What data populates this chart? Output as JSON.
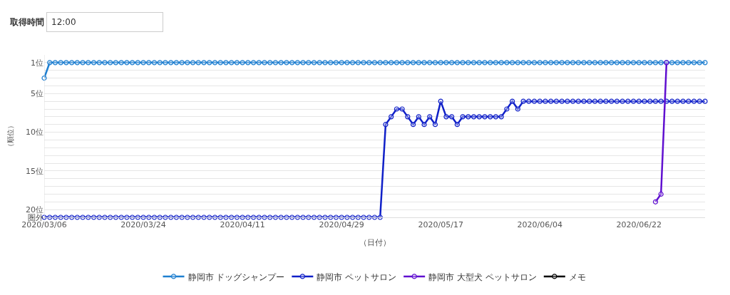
{
  "chart_data": {
    "type": "line",
    "annotations": [
      "取得時間",
      "12:00"
    ],
    "xlabel": "（日付）",
    "ylabel": "（順位）",
    "x": [
      "2020-03-06",
      "2020-03-07",
      "2020-03-08",
      "2020-03-09",
      "2020-03-10",
      "2020-03-11",
      "2020-03-12",
      "2020-03-13",
      "2020-03-14",
      "2020-03-15",
      "2020-03-16",
      "2020-03-17",
      "2020-03-18",
      "2020-03-19",
      "2020-03-20",
      "2020-03-21",
      "2020-03-22",
      "2020-03-23",
      "2020-03-24",
      "2020-03-25",
      "2020-03-26",
      "2020-03-27",
      "2020-03-28",
      "2020-03-29",
      "2020-03-30",
      "2020-03-31",
      "2020-04-01",
      "2020-04-02",
      "2020-04-03",
      "2020-04-04",
      "2020-04-05",
      "2020-04-06",
      "2020-04-07",
      "2020-04-08",
      "2020-04-09",
      "2020-04-10",
      "2020-04-11",
      "2020-04-12",
      "2020-04-13",
      "2020-04-14",
      "2020-04-15",
      "2020-04-16",
      "2020-04-17",
      "2020-04-18",
      "2020-04-19",
      "2020-04-20",
      "2020-04-21",
      "2020-04-22",
      "2020-04-23",
      "2020-04-24",
      "2020-04-25",
      "2020-04-26",
      "2020-04-27",
      "2020-04-28",
      "2020-04-29",
      "2020-04-30",
      "2020-05-01",
      "2020-05-02",
      "2020-05-03",
      "2020-05-04",
      "2020-05-05",
      "2020-05-06",
      "2020-05-07",
      "2020-05-08",
      "2020-05-09",
      "2020-05-10",
      "2020-05-11",
      "2020-05-12",
      "2020-05-13",
      "2020-05-14",
      "2020-05-15",
      "2020-05-16",
      "2020-05-17",
      "2020-05-18",
      "2020-05-19",
      "2020-05-20",
      "2020-05-21",
      "2020-05-22",
      "2020-05-23",
      "2020-05-24",
      "2020-05-25",
      "2020-05-26",
      "2020-05-27",
      "2020-05-28",
      "2020-05-29",
      "2020-05-30",
      "2020-05-31",
      "2020-06-01",
      "2020-06-02",
      "2020-06-03",
      "2020-06-04",
      "2020-06-05",
      "2020-06-06",
      "2020-06-07",
      "2020-06-08",
      "2020-06-09",
      "2020-06-10",
      "2020-06-11",
      "2020-06-12",
      "2020-06-13",
      "2020-06-14",
      "2020-06-15",
      "2020-06-16",
      "2020-06-17",
      "2020-06-18",
      "2020-06-19",
      "2020-06-20",
      "2020-06-21",
      "2020-06-22",
      "2020-06-23",
      "2020-06-24",
      "2020-06-25",
      "2020-06-26",
      "2020-06-27",
      "2020-06-28",
      "2020-06-29",
      "2020-06-30",
      "2020-07-01",
      "2020-07-02",
      "2020-07-03",
      "2020-07-04"
    ],
    "series": [
      {
        "name": "静岡市 ドッグシャンプー",
        "color": "#1f7fd0",
        "values": [
          3,
          1,
          1,
          1,
          1,
          1,
          1,
          1,
          1,
          1,
          1,
          1,
          1,
          1,
          1,
          1,
          1,
          1,
          1,
          1,
          1,
          1,
          1,
          1,
          1,
          1,
          1,
          1,
          1,
          1,
          1,
          1,
          1,
          1,
          1,
          1,
          1,
          1,
          1,
          1,
          1,
          1,
          1,
          1,
          1,
          1,
          1,
          1,
          1,
          1,
          1,
          1,
          1,
          1,
          1,
          1,
          1,
          1,
          1,
          1,
          1,
          1,
          1,
          1,
          1,
          1,
          1,
          1,
          1,
          1,
          1,
          1,
          1,
          1,
          1,
          1,
          1,
          1,
          1,
          1,
          1,
          1,
          1,
          1,
          1,
          1,
          1,
          1,
          1,
          1,
          1,
          1,
          1,
          1,
          1,
          1,
          1,
          1,
          1,
          1,
          1,
          1,
          1,
          1,
          1,
          1,
          1,
          1,
          1,
          1,
          1,
          1,
          1,
          1,
          1,
          1,
          1,
          1,
          1,
          1,
          1
        ]
      },
      {
        "name": "静岡市 ペットサロン",
        "color": "#1020c8",
        "values": [
          21,
          21,
          21,
          21,
          21,
          21,
          21,
          21,
          21,
          21,
          21,
          21,
          21,
          21,
          21,
          21,
          21,
          21,
          21,
          21,
          21,
          21,
          21,
          21,
          21,
          21,
          21,
          21,
          21,
          21,
          21,
          21,
          21,
          21,
          21,
          21,
          21,
          21,
          21,
          21,
          21,
          21,
          21,
          21,
          21,
          21,
          21,
          21,
          21,
          21,
          21,
          21,
          21,
          21,
          21,
          21,
          21,
          21,
          21,
          21,
          21,
          21,
          9,
          8,
          7,
          7,
          8,
          9,
          8,
          9,
          8,
          9,
          6,
          8,
          8,
          9,
          8,
          8,
          8,
          8,
          8,
          8,
          8,
          8,
          7,
          6,
          7,
          6,
          6,
          6,
          6,
          6,
          6,
          6,
          6,
          6,
          6,
          6,
          6,
          6,
          6,
          6,
          6,
          6,
          6,
          6,
          6,
          6,
          6,
          6,
          6,
          6,
          6,
          6,
          6,
          6,
          6,
          6,
          6,
          6,
          6
        ]
      },
      {
        "name": "静岡市 大型犬 ペットサロン",
        "color": "#6010d0",
        "values": [
          null,
          null,
          null,
          null,
          null,
          null,
          null,
          null,
          null,
          null,
          null,
          null,
          null,
          null,
          null,
          null,
          null,
          null,
          null,
          null,
          null,
          null,
          null,
          null,
          null,
          null,
          null,
          null,
          null,
          null,
          null,
          null,
          null,
          null,
          null,
          null,
          null,
          null,
          null,
          null,
          null,
          null,
          null,
          null,
          null,
          null,
          null,
          null,
          null,
          null,
          null,
          null,
          null,
          null,
          null,
          null,
          null,
          null,
          null,
          null,
          null,
          null,
          null,
          null,
          null,
          null,
          null,
          null,
          null,
          null,
          null,
          null,
          null,
          null,
          null,
          null,
          null,
          null,
          null,
          null,
          null,
          null,
          null,
          null,
          null,
          null,
          null,
          null,
          null,
          null,
          null,
          null,
          null,
          null,
          null,
          null,
          null,
          null,
          null,
          null,
          null,
          null,
          null,
          null,
          null,
          null,
          null,
          null,
          null,
          null,
          null,
          19,
          18,
          1,
          null,
          null,
          null,
          null,
          null,
          null,
          null
        ]
      },
      {
        "name": "メモ",
        "color": "#000000",
        "values": [
          null,
          null,
          null,
          null,
          null,
          null,
          null,
          null,
          null,
          null,
          null,
          null,
          null,
          null,
          null,
          null,
          null,
          null,
          null,
          null,
          null,
          null,
          null,
          null,
          null,
          null,
          null,
          null,
          null,
          null,
          null,
          null,
          null,
          null,
          null,
          null,
          null,
          null,
          null,
          null,
          null,
          null,
          null,
          null,
          null,
          null,
          null,
          null,
          null,
          null,
          null,
          null,
          null,
          null,
          null,
          null,
          null,
          null,
          null,
          null,
          null,
          null,
          null,
          null,
          null,
          null,
          null,
          null,
          null,
          null,
          null,
          null,
          null,
          null,
          null,
          null,
          null,
          null,
          null,
          null,
          null,
          null,
          null,
          null,
          null,
          null,
          null,
          null,
          null,
          null,
          null,
          null,
          null,
          null,
          null,
          null,
          null,
          null,
          null,
          null,
          null,
          null,
          null,
          null,
          null,
          null,
          null,
          null,
          null,
          null,
          null,
          null,
          null,
          null,
          null,
          null,
          null,
          null,
          null,
          null,
          null
        ]
      }
    ],
    "xlim": [
      "2020-03-06",
      "2020-07-04"
    ],
    "xticks": [
      {
        "value": "2020-03-06",
        "label": "2020/03/06"
      },
      {
        "value": "2020-03-24",
        "label": "2020/03/24"
      },
      {
        "value": "2020-04-11",
        "label": "2020/04/11"
      },
      {
        "value": "2020-04-29",
        "label": "2020/04/29"
      },
      {
        "value": "2020-05-17",
        "label": "2020/05/17"
      },
      {
        "value": "2020-06-04",
        "label": "2020/06/04"
      },
      {
        "value": "2020-06-22",
        "label": "2020/06/22"
      }
    ],
    "ylim": [
      21,
      0
    ],
    "yticks": [
      {
        "value": 1,
        "label": "1位"
      },
      {
        "value": 2,
        "label": null
      },
      {
        "value": 3,
        "label": null
      },
      {
        "value": 4,
        "label": null
      },
      {
        "value": 5,
        "label": "5位"
      },
      {
        "value": 6,
        "label": null
      },
      {
        "value": 7,
        "label": null
      },
      {
        "value": 8,
        "label": null
      },
      {
        "value": 9,
        "label": null
      },
      {
        "value": 10,
        "label": "10位"
      },
      {
        "value": 11,
        "label": null
      },
      {
        "value": 12,
        "label": null
      },
      {
        "value": 13,
        "label": null
      },
      {
        "value": 14,
        "label": null
      },
      {
        "value": 15,
        "label": "15位"
      },
      {
        "value": 16,
        "label": null
      },
      {
        "value": 17,
        "label": null
      },
      {
        "value": 18,
        "label": null
      },
      {
        "value": 19,
        "label": null
      },
      {
        "value": 20,
        "label": "20位"
      },
      {
        "value": 21,
        "label": "圏外"
      }
    ],
    "grid": "y",
    "legend": "bottom",
    "marker": "circle",
    "line_style": "solid"
  }
}
